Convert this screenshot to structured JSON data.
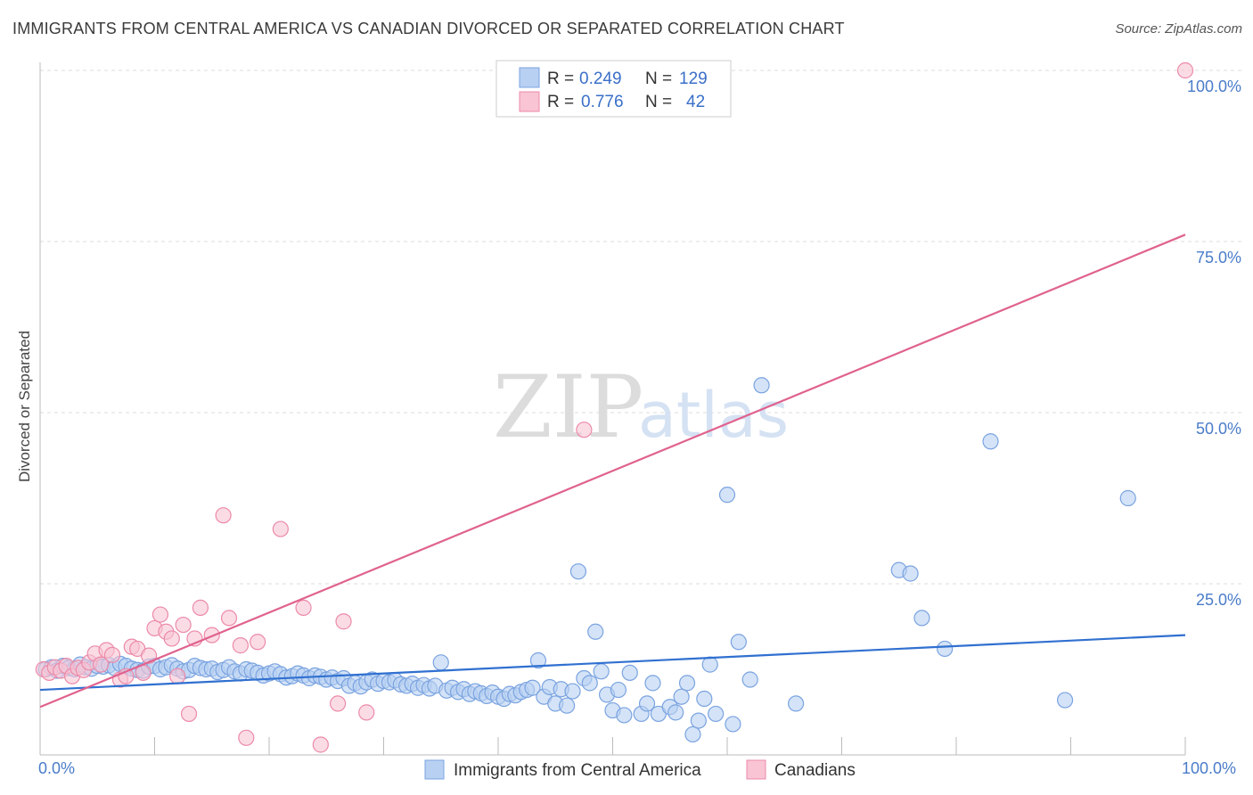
{
  "header": {
    "title": "IMMIGRANTS FROM CENTRAL AMERICA VS CANADIAN DIVORCED OR SEPARATED CORRELATION CHART",
    "source": "Source: ZipAtlas.com"
  },
  "watermark": {
    "zip": "ZIP",
    "atlas": "atlas"
  },
  "legend": {
    "rows": [
      {
        "r_label": "R = ",
        "r_value": "0.249",
        "n_label": "N = ",
        "n_value": "129"
      },
      {
        "r_label": "R = ",
        "r_value": "0.776",
        "n_label": "N = ",
        "n_value": "42"
      }
    ]
  },
  "chart_data": {
    "type": "scatter",
    "title": "IMMIGRANTS FROM CENTRAL AMERICA VS CANADIAN DIVORCED OR SEPARATED CORRELATION CHART",
    "ylabel": "Divorced or Separated",
    "xlabel": "",
    "xlim": [
      0,
      100
    ],
    "ylim": [
      0,
      100
    ],
    "x_tick_labels": [
      "0.0%",
      "100.0%"
    ],
    "y_tick_labels": [
      "25.0%",
      "50.0%",
      "75.0%",
      "100.0%"
    ],
    "y_ticks": [
      25,
      50,
      75,
      100
    ],
    "grid": "horizontal dashed",
    "legend_position": "top-center",
    "colors": {
      "blue_fill": "#b8d0f2",
      "blue_stroke": "#7aa3e0",
      "blue_line": "#3070d0",
      "pink_fill": "#f9c4d4",
      "pink_stroke": "#ec8aa9",
      "pink_line": "#e0628e",
      "tick_text": "#4a7cc9"
    },
    "series": [
      {
        "name": "Immigrants from Central America",
        "R": 0.249,
        "N": 129,
        "trend": {
          "x": [
            0,
            100
          ],
          "y": [
            9.5,
            17.5
          ]
        },
        "points": [
          [
            0.5,
            12.5
          ],
          [
            1.0,
            12.8
          ],
          [
            1.5,
            12.3
          ],
          [
            2.0,
            13.0
          ],
          [
            2.5,
            12.7
          ],
          [
            3.0,
            12.5
          ],
          [
            3.5,
            13.2
          ],
          [
            4.0,
            12.8
          ],
          [
            4.5,
            12.6
          ],
          [
            5.0,
            13.0
          ],
          [
            5.5,
            12.9
          ],
          [
            6.0,
            13.1
          ],
          [
            6.5,
            12.7
          ],
          [
            7.0,
            13.3
          ],
          [
            7.5,
            13.0
          ],
          [
            8.0,
            12.6
          ],
          [
            8.5,
            12.4
          ],
          [
            9.0,
            12.3
          ],
          [
            9.5,
            12.9
          ],
          [
            10.0,
            13.0
          ],
          [
            10.5,
            12.5
          ],
          [
            11.0,
            12.8
          ],
          [
            11.5,
            13.1
          ],
          [
            12.0,
            12.6
          ],
          [
            12.5,
            12.2
          ],
          [
            13.0,
            12.4
          ],
          [
            13.5,
            13.0
          ],
          [
            14.0,
            12.7
          ],
          [
            14.5,
            12.5
          ],
          [
            15.0,
            12.6
          ],
          [
            15.5,
            12.1
          ],
          [
            16.0,
            12.4
          ],
          [
            16.5,
            12.8
          ],
          [
            17.0,
            12.2
          ],
          [
            17.5,
            11.9
          ],
          [
            18.0,
            12.5
          ],
          [
            18.5,
            12.3
          ],
          [
            19.0,
            12.0
          ],
          [
            19.5,
            11.6
          ],
          [
            20.0,
            11.9
          ],
          [
            20.5,
            12.2
          ],
          [
            21.0,
            11.8
          ],
          [
            21.5,
            11.3
          ],
          [
            22.0,
            11.5
          ],
          [
            22.5,
            11.9
          ],
          [
            23.0,
            11.6
          ],
          [
            23.5,
            11.2
          ],
          [
            24.0,
            11.6
          ],
          [
            24.5,
            11.4
          ],
          [
            25.0,
            11.0
          ],
          [
            25.5,
            11.3
          ],
          [
            26.0,
            10.8
          ],
          [
            26.5,
            11.2
          ],
          [
            27.0,
            10.1
          ],
          [
            27.5,
            10.5
          ],
          [
            28.0,
            10.0
          ],
          [
            28.5,
            10.6
          ],
          [
            29.0,
            11.0
          ],
          [
            29.5,
            10.4
          ],
          [
            30.0,
            10.8
          ],
          [
            30.5,
            10.6
          ],
          [
            31.0,
            10.9
          ],
          [
            31.5,
            10.3
          ],
          [
            32.0,
            10.1
          ],
          [
            32.5,
            10.4
          ],
          [
            33.0,
            9.8
          ],
          [
            33.5,
            10.2
          ],
          [
            34.0,
            9.7
          ],
          [
            34.5,
            10.1
          ],
          [
            35.0,
            13.5
          ],
          [
            35.5,
            9.4
          ],
          [
            36.0,
            9.8
          ],
          [
            36.5,
            9.2
          ],
          [
            37.0,
            9.6
          ],
          [
            37.5,
            8.9
          ],
          [
            38.0,
            9.3
          ],
          [
            38.5,
            9.0
          ],
          [
            39.0,
            8.6
          ],
          [
            39.5,
            9.1
          ],
          [
            40.0,
            8.5
          ],
          [
            40.5,
            8.2
          ],
          [
            41.0,
            8.9
          ],
          [
            41.5,
            8.7
          ],
          [
            42.0,
            9.2
          ],
          [
            42.5,
            9.5
          ],
          [
            43.0,
            9.8
          ],
          [
            43.5,
            13.8
          ],
          [
            44.0,
            8.5
          ],
          [
            44.5,
            9.9
          ],
          [
            45.0,
            7.5
          ],
          [
            45.5,
            9.6
          ],
          [
            46.0,
            7.2
          ],
          [
            46.5,
            9.3
          ],
          [
            47.0,
            26.8
          ],
          [
            47.5,
            11.2
          ],
          [
            48.0,
            10.5
          ],
          [
            48.5,
            18.0
          ],
          [
            49.0,
            12.2
          ],
          [
            49.5,
            8.8
          ],
          [
            50.0,
            6.5
          ],
          [
            50.5,
            9.5
          ],
          [
            51.0,
            5.8
          ],
          [
            51.5,
            12.0
          ],
          [
            52.5,
            6.0
          ],
          [
            53.0,
            7.5
          ],
          [
            53.5,
            10.5
          ],
          [
            54.0,
            6.0
          ],
          [
            55.0,
            7.0
          ],
          [
            55.5,
            6.2
          ],
          [
            56.0,
            8.5
          ],
          [
            56.5,
            10.5
          ],
          [
            57.0,
            3.0
          ],
          [
            57.5,
            5.0
          ],
          [
            58.0,
            8.2
          ],
          [
            58.5,
            13.2
          ],
          [
            59.0,
            6.0
          ],
          [
            60.0,
            38.0
          ],
          [
            60.5,
            4.5
          ],
          [
            61.0,
            16.5
          ],
          [
            62.0,
            11.0
          ],
          [
            63.0,
            54.0
          ],
          [
            66.0,
            7.5
          ],
          [
            75.0,
            27.0
          ],
          [
            76.0,
            26.5
          ],
          [
            77.0,
            20.0
          ],
          [
            79.0,
            15.5
          ],
          [
            83.0,
            45.8
          ],
          [
            89.5,
            8.0
          ],
          [
            95.0,
            37.5
          ]
        ]
      },
      {
        "name": "Canadians",
        "R": 0.776,
        "N": 42,
        "trend": {
          "x": [
            0,
            100
          ],
          "y": [
            7.0,
            76.0
          ]
        },
        "points": [
          [
            0.3,
            12.5
          ],
          [
            0.8,
            12.0
          ],
          [
            1.3,
            12.8
          ],
          [
            1.8,
            12.3
          ],
          [
            2.3,
            13.0
          ],
          [
            2.8,
            11.5
          ],
          [
            3.3,
            12.7
          ],
          [
            3.8,
            12.4
          ],
          [
            4.3,
            13.5
          ],
          [
            4.8,
            14.8
          ],
          [
            5.3,
            13.2
          ],
          [
            5.8,
            15.3
          ],
          [
            6.3,
            14.6
          ],
          [
            7.0,
            11.0
          ],
          [
            7.5,
            11.5
          ],
          [
            8.0,
            15.8
          ],
          [
            8.5,
            15.5
          ],
          [
            9.0,
            12.0
          ],
          [
            9.5,
            14.5
          ],
          [
            10.0,
            18.5
          ],
          [
            10.5,
            20.5
          ],
          [
            11.0,
            18.0
          ],
          [
            11.5,
            17.0
          ],
          [
            12.0,
            11.5
          ],
          [
            12.5,
            19.0
          ],
          [
            13.0,
            6.0
          ],
          [
            13.5,
            17.0
          ],
          [
            14.0,
            21.5
          ],
          [
            15.0,
            17.5
          ],
          [
            16.0,
            35.0
          ],
          [
            16.5,
            20.0
          ],
          [
            17.5,
            16.0
          ],
          [
            18.0,
            2.5
          ],
          [
            19.0,
            16.5
          ],
          [
            21.0,
            33.0
          ],
          [
            23.0,
            21.5
          ],
          [
            24.5,
            1.5
          ],
          [
            26.0,
            7.5
          ],
          [
            26.5,
            19.5
          ],
          [
            28.5,
            6.2
          ],
          [
            47.5,
            47.5
          ],
          [
            100.0,
            100.0
          ]
        ]
      }
    ]
  },
  "bottom_legend": {
    "items": [
      {
        "label": "Immigrants from Central America"
      },
      {
        "label": "Canadians"
      }
    ]
  }
}
